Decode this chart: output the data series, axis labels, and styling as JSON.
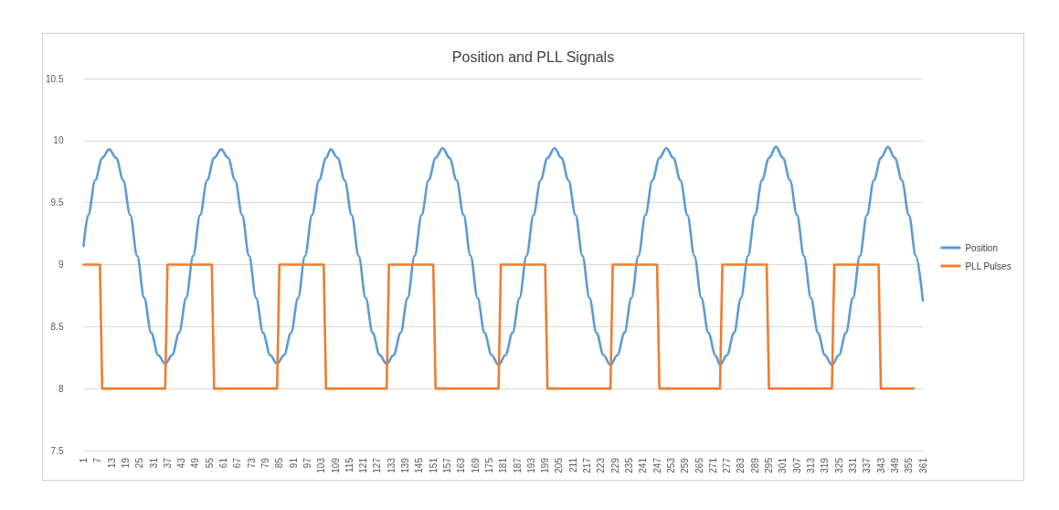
{
  "chart_data": {
    "type": "line",
    "title": "Position and PLL Signals",
    "xlim": [
      1,
      361
    ],
    "xticks": [
      1,
      7,
      13,
      19,
      25,
      31,
      37,
      43,
      49,
      55,
      61,
      67,
      73,
      79,
      85,
      91,
      97,
      103,
      109,
      115,
      121,
      127,
      133,
      139,
      145,
      151,
      157,
      163,
      169,
      175,
      181,
      187,
      193,
      199,
      205,
      211,
      217,
      223,
      229,
      235,
      241,
      247,
      253,
      259,
      265,
      271,
      277,
      283,
      289,
      295,
      301,
      307,
      313,
      319,
      325,
      331,
      337,
      343,
      349,
      355,
      361
    ],
    "ylim": [
      7.5,
      10.5
    ],
    "yticks": [
      7.5,
      8,
      8.5,
      9,
      9.5,
      10,
      10.5
    ],
    "grid": "y",
    "legend": "right",
    "marker": "none",
    "line_style": "solid",
    "series": [
      {
        "name": "Position",
        "color": "#5b9bd5",
        "x": [
          1,
          3,
          6,
          9,
          12,
          15,
          18,
          21,
          24,
          27,
          30,
          33,
          36,
          39,
          42,
          45,
          48,
          51,
          54,
          57,
          60,
          63,
          66,
          69,
          72,
          75,
          78,
          81,
          84,
          87,
          90,
          93,
          96,
          99,
          102,
          105,
          107,
          110,
          113,
          116,
          119,
          122,
          125,
          128,
          131,
          134,
          137,
          140,
          143,
          146,
          149,
          152,
          155,
          158,
          161,
          164,
          167,
          170,
          173,
          176,
          179,
          182,
          185,
          188,
          191,
          194,
          197,
          200,
          203,
          206,
          209,
          212,
          215,
          218,
          221,
          224,
          227,
          230,
          233,
          236,
          239,
          242,
          245,
          248,
          251,
          254,
          257,
          260,
          263,
          266,
          269,
          272,
          274,
          277,
          280,
          283,
          286,
          289,
          292,
          295,
          298,
          301,
          304,
          307,
          310,
          313,
          316,
          319,
          322,
          325,
          328,
          331,
          334,
          337,
          340,
          343,
          346,
          349,
          352,
          355,
          358,
          361
        ],
        "values": [
          9.15,
          9.4,
          9.68,
          9.86,
          9.93,
          9.86,
          9.68,
          9.4,
          9.07,
          8.73,
          8.45,
          8.27,
          8.2,
          8.27,
          8.45,
          8.73,
          9.07,
          9.4,
          9.68,
          9.86,
          9.93,
          9.86,
          9.68,
          9.4,
          9.07,
          8.73,
          8.45,
          8.27,
          8.2,
          8.27,
          8.45,
          8.73,
          9.07,
          9.4,
          9.68,
          9.86,
          9.93,
          9.86,
          9.68,
          9.4,
          9.07,
          8.73,
          8.45,
          8.27,
          8.2,
          8.27,
          8.45,
          8.73,
          9.07,
          9.4,
          9.68,
          9.86,
          9.94,
          9.86,
          9.68,
          9.4,
          9.07,
          8.73,
          8.45,
          8.27,
          8.19,
          8.27,
          8.45,
          8.73,
          9.07,
          9.4,
          9.68,
          9.86,
          9.94,
          9.86,
          9.68,
          9.4,
          9.07,
          8.73,
          8.45,
          8.27,
          8.19,
          8.27,
          8.45,
          8.73,
          9.07,
          9.4,
          9.68,
          9.86,
          9.94,
          9.86,
          9.68,
          9.4,
          9.07,
          8.73,
          8.45,
          8.27,
          8.19,
          8.27,
          8.45,
          8.73,
          9.07,
          9.4,
          9.68,
          9.86,
          9.95,
          9.86,
          9.68,
          9.4,
          9.07,
          8.73,
          8.45,
          8.27,
          8.19,
          8.27,
          8.45,
          8.73,
          9.07,
          9.4,
          9.68,
          9.86,
          9.95,
          9.86,
          9.68,
          9.4,
          9.07,
          8.71
        ]
      },
      {
        "name": "PLL Pulses",
        "color": "#ed7d31",
        "x": [
          1,
          8,
          9,
          36,
          37,
          56,
          57,
          84,
          85,
          104,
          105,
          131,
          132,
          151,
          152,
          179,
          180,
          199,
          200,
          227,
          228,
          247,
          248,
          274,
          275,
          294,
          295,
          322,
          323,
          342,
          343,
          357
        ],
        "values": [
          9,
          9,
          8,
          8,
          9,
          9,
          8,
          8,
          9,
          9,
          8,
          8,
          9,
          9,
          8,
          8,
          9,
          9,
          8,
          8,
          9,
          9,
          8,
          8,
          9,
          9,
          8,
          8,
          9,
          9,
          8,
          8
        ]
      }
    ]
  }
}
